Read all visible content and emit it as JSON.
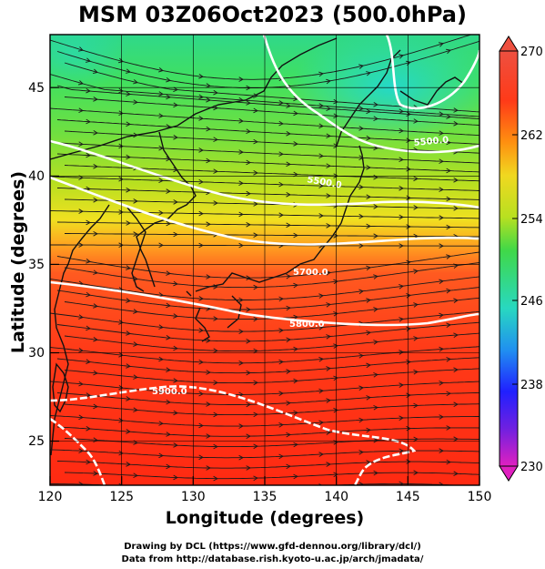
{
  "title": "MSM 03Z06Oct2023 (500.0hPa)",
  "map": {
    "xlabel": "Longitude (degrees)",
    "ylabel": "Latitude  (degrees)",
    "lon_range": [
      120,
      150
    ],
    "lat_range": [
      22.5,
      48
    ],
    "lon_ticks": [
      "120",
      "125",
      "130",
      "135",
      "140",
      "145",
      "150"
    ],
    "lat_ticks": [
      "25",
      "30",
      "35",
      "40",
      "45"
    ],
    "grid": true
  },
  "colorbar": {
    "ticks": [
      "270",
      "262",
      "254",
      "246",
      "238",
      "230"
    ],
    "range": [
      230,
      270
    ],
    "colors": [
      "#e020c0",
      "#3030ff",
      "#30c8c0",
      "#30d050",
      "#c0e020",
      "#f0d020",
      "#ff8000",
      "#ff2000",
      "#ee5040"
    ]
  },
  "contours": [
    {
      "label": "5500.0",
      "color": "#ffffff"
    },
    {
      "label": "5500.0",
      "color": "#ffffff"
    },
    {
      "label": "5700.0",
      "color": "#ffffff"
    },
    {
      "label": "5800.0",
      "color": "#ffffff"
    },
    {
      "label": "5900.0",
      "color": "#ffffff"
    }
  ],
  "credits": [
    "Drawing by DCL (https://www.gfd-dennou.org/library/dcl/)",
    "Data from http://database.rish.kyoto-u.ac.jp/arch/jmadata/"
  ]
}
